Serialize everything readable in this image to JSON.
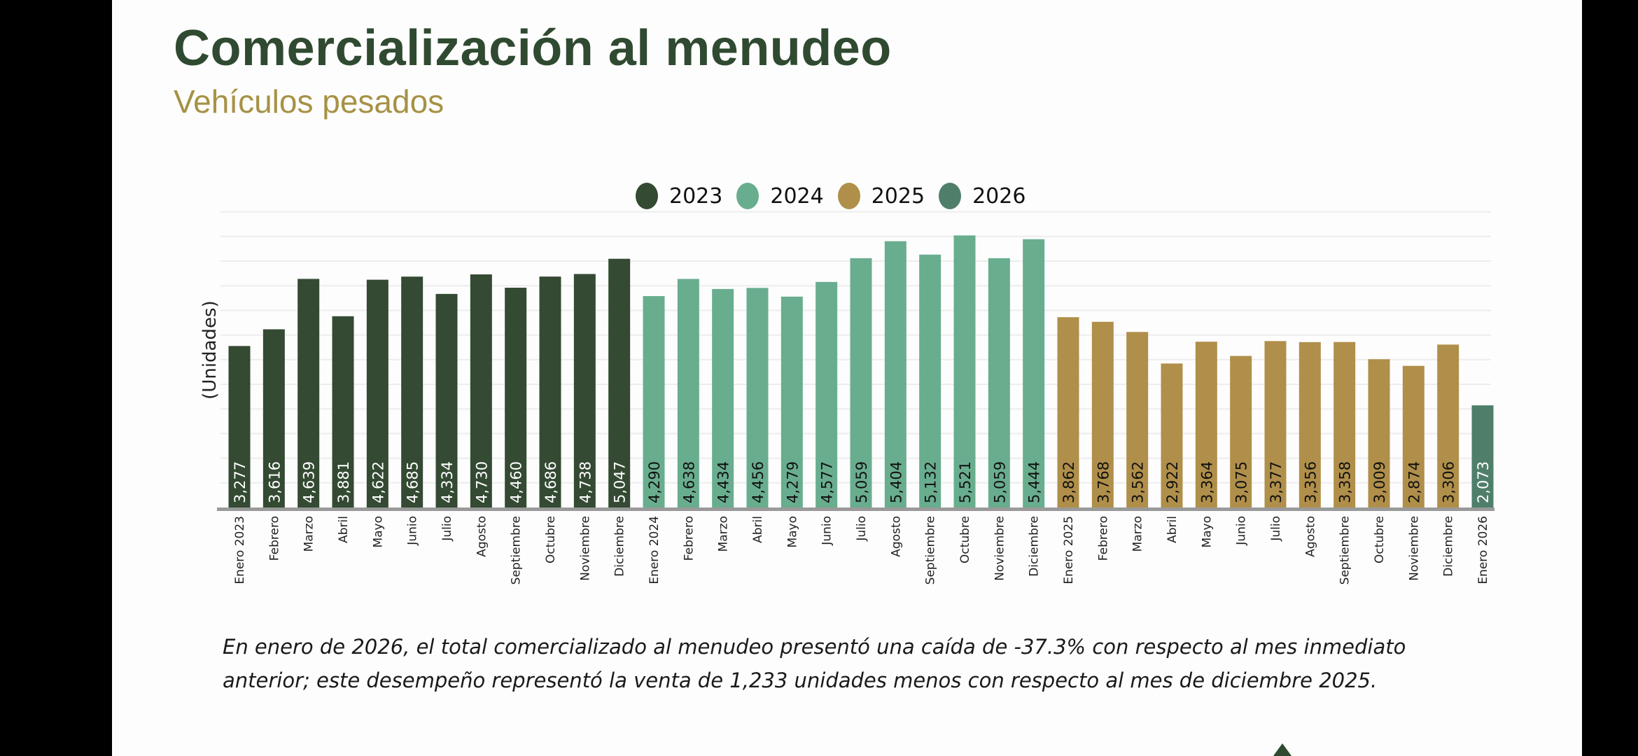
{
  "page": {
    "title": "Comercialización al menudeo",
    "subtitle": "Vehículos pesados",
    "caption_line1": "En enero de 2026, el total comercializado al menudeo presentó una caída de -37.3% con respecto al mes inmediato",
    "caption_line2": "anterior; este desempeño representó la venta de 1,233 unidades menos con respecto al mes de diciembre 2025."
  },
  "chart_data": {
    "type": "bar",
    "title": "Comercialización al menudeo",
    "subtitle": "Vehículos pesados",
    "xlabel": "",
    "ylabel": "(Unidades)",
    "ylim": [
      0,
      6000
    ],
    "grid": true,
    "legend_position": "top-center",
    "legend": [
      {
        "name": "2023",
        "color": "#344a33"
      },
      {
        "name": "2024",
        "color": "#69ad8f"
      },
      {
        "name": "2025",
        "color": "#b08f4a"
      },
      {
        "name": "2026",
        "color": "#4f7f6b"
      }
    ],
    "categories": [
      "Enero 2023",
      "Febrero",
      "Marzo",
      "Abril",
      "Mayo",
      "Junio",
      "Julio",
      "Agosto",
      "Septiembre",
      "Octubre",
      "Noviembre",
      "Diciembre",
      "Enero 2024",
      "Febrero",
      "Marzo",
      "Abril",
      "Mayo",
      "Junio",
      "Julio",
      "Agosto",
      "Septiembre",
      "Octubre",
      "Noviembre",
      "Diciembre",
      "Enero 2025",
      "Febrero",
      "Marzo",
      "Abril",
      "Mayo",
      "Junio",
      "Julio",
      "Agosto",
      "Septiembre",
      "Octubre",
      "Noviembre",
      "Diciembre",
      "Enero 2026"
    ],
    "series": [
      {
        "name": "2023",
        "color": "#344a33",
        "label_color": "#ffffff",
        "values": [
          3277,
          3616,
          4639,
          3881,
          4622,
          4685,
          4334,
          4730,
          4460,
          4686,
          4738,
          5047
        ]
      },
      {
        "name": "2024",
        "color": "#69ad8f",
        "label_color": "#111111",
        "values": [
          4290,
          4638,
          4434,
          4456,
          4279,
          4577,
          5059,
          5404,
          5132,
          5521,
          5059,
          5444
        ]
      },
      {
        "name": "2025",
        "color": "#b08f4a",
        "label_color": "#111111",
        "values": [
          3862,
          3768,
          3562,
          2922,
          3364,
          3075,
          3377,
          3356,
          3358,
          3009,
          2874,
          3306
        ]
      },
      {
        "name": "2026",
        "color": "#4f7f6b",
        "label_color": "#ffffff",
        "values": [
          2073
        ]
      }
    ]
  }
}
